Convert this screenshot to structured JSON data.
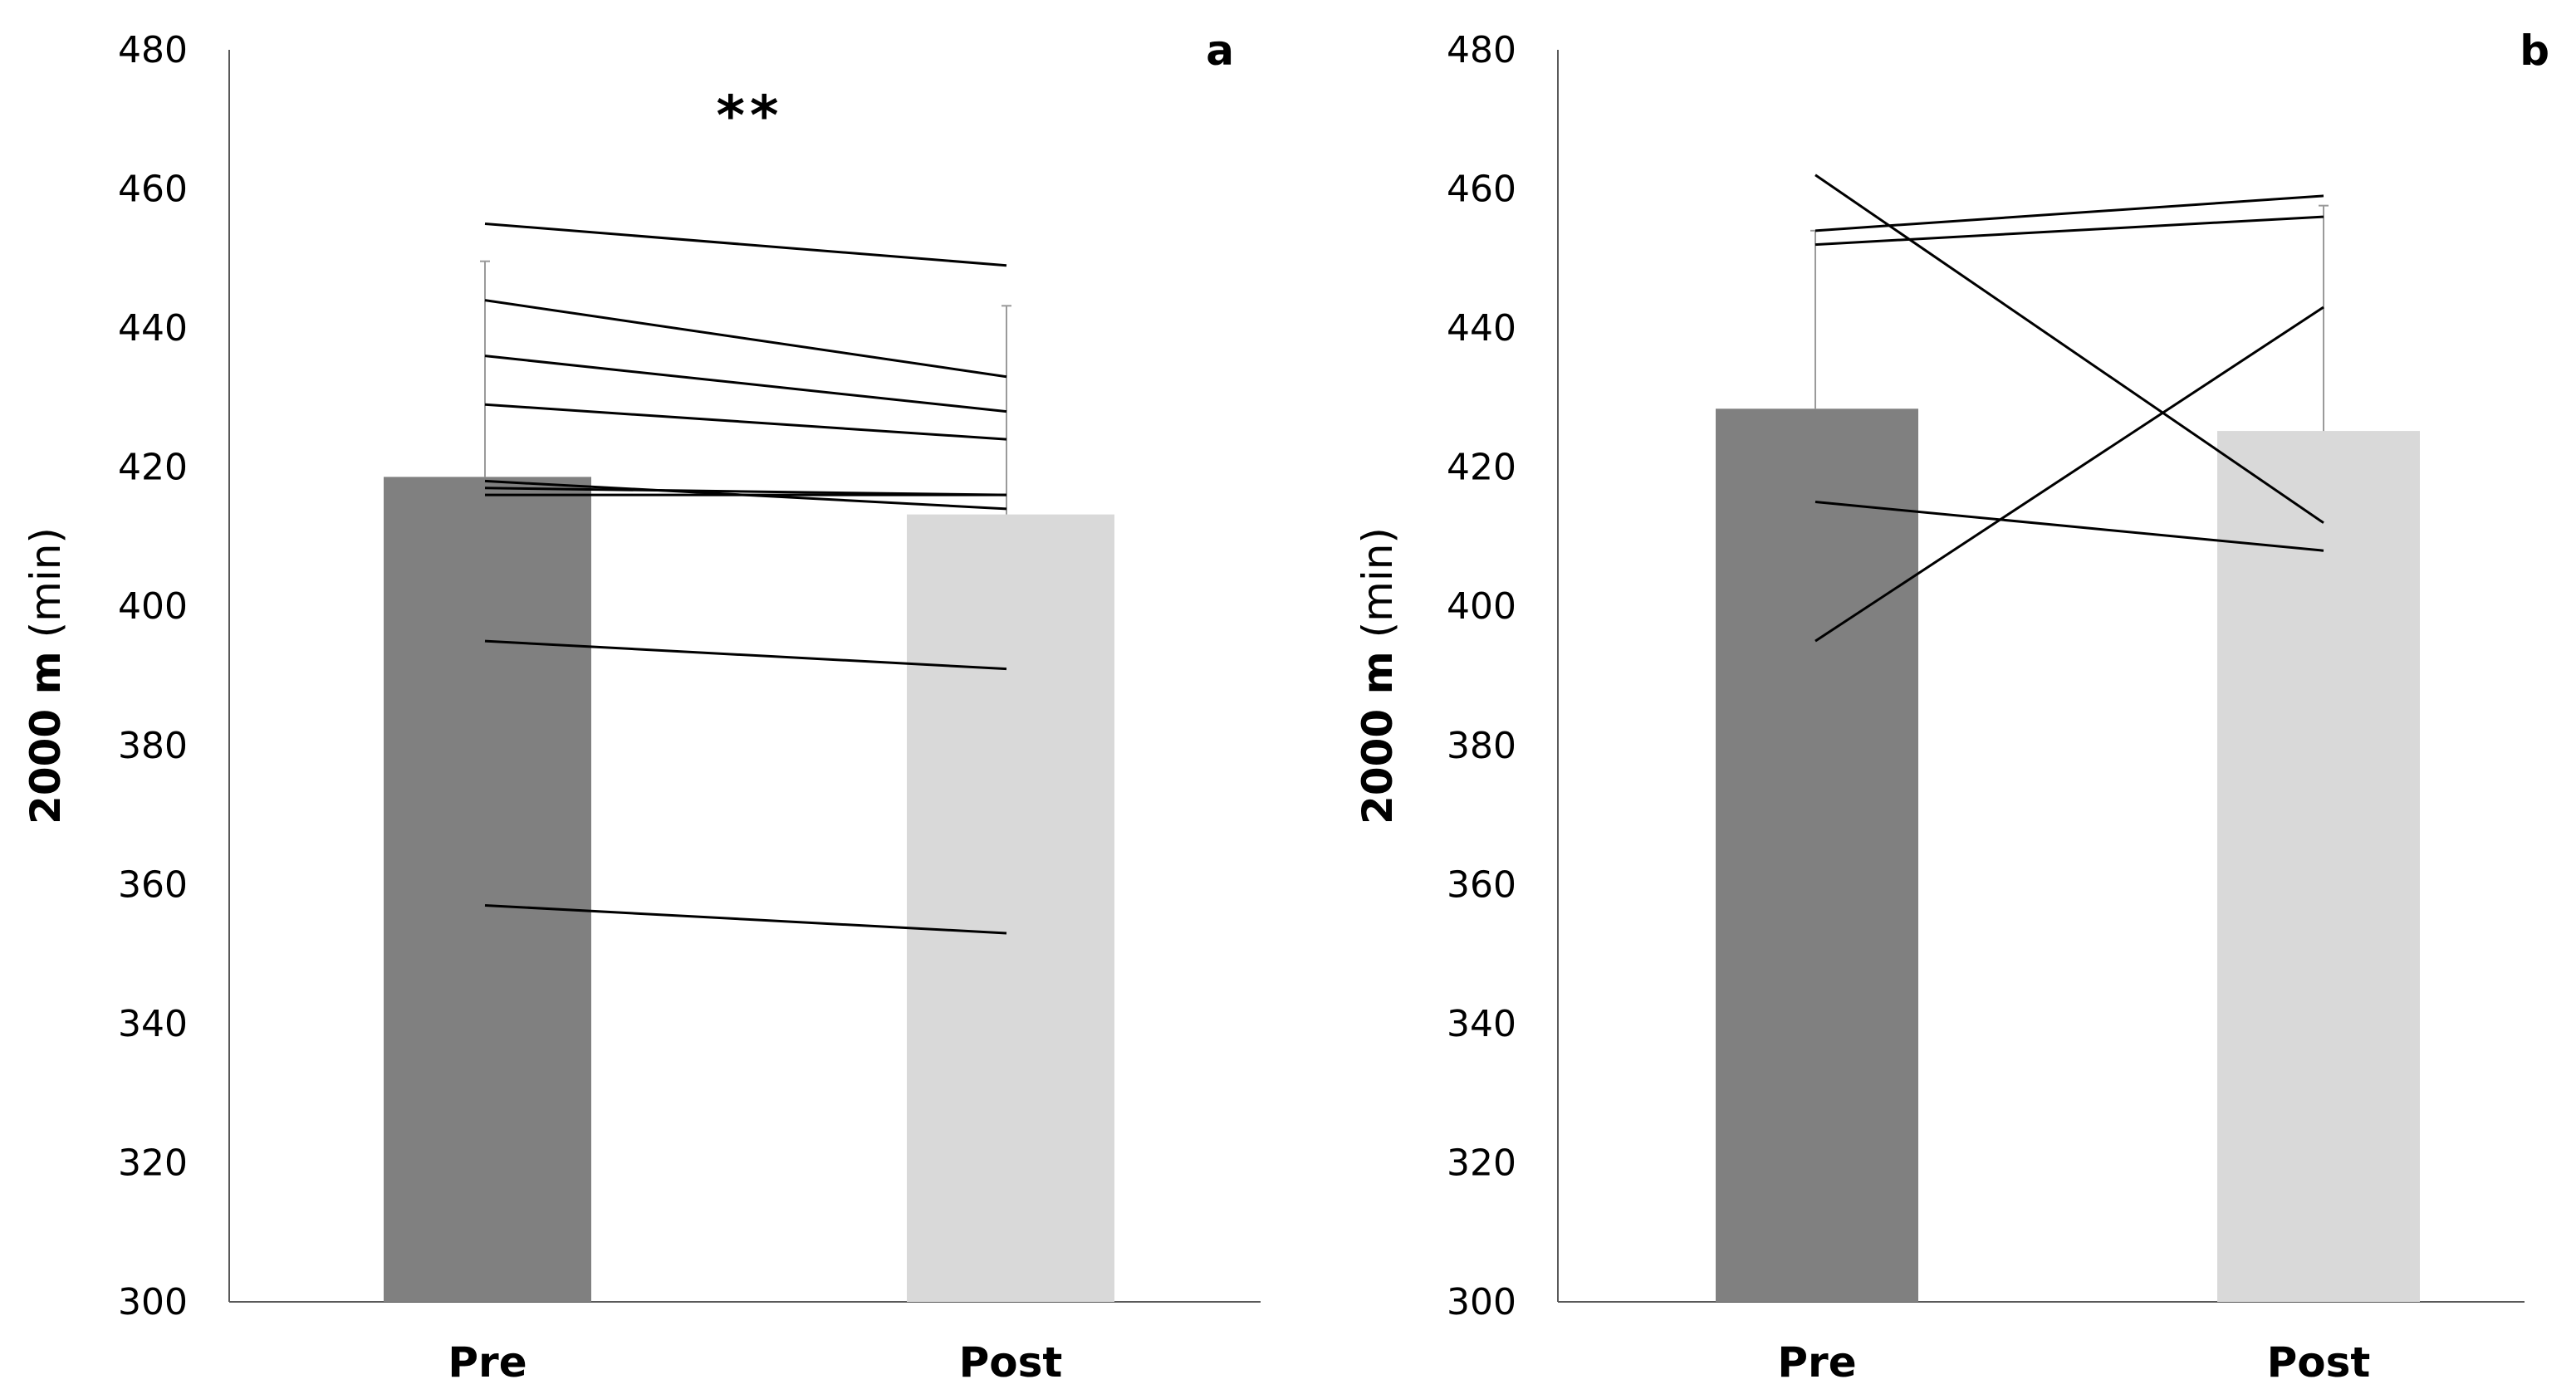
{
  "chart_data": [
    {
      "type": "bar",
      "panel_label": "a",
      "categories": [
        "Pre",
        "Post"
      ],
      "values": [
        418.6,
        413.2
      ],
      "bar_colors": [
        "#808080",
        "#d9d9d9"
      ],
      "error_upper": [
        449.6,
        443.2
      ],
      "ylabel_bold": "2000 m",
      "ylabel_unit": "(min)",
      "ylim": [
        300,
        480
      ],
      "yticks": [
        "300",
        "320",
        "340",
        "360",
        "380",
        "400",
        "420",
        "440",
        "460",
        "480"
      ],
      "significance": "**",
      "individual_lines": [
        {
          "pre": 455,
          "post": 449
        },
        {
          "pre": 444,
          "post": 433
        },
        {
          "pre": 436,
          "post": 428
        },
        {
          "pre": 429,
          "post": 424
        },
        {
          "pre": 418,
          "post": 414
        },
        {
          "pre": 417,
          "post": 416
        },
        {
          "pre": 416,
          "post": 416
        },
        {
          "pre": 395,
          "post": 391
        },
        {
          "pre": 357,
          "post": 353
        }
      ]
    },
    {
      "type": "bar",
      "panel_label": "b",
      "categories": [
        "Pre",
        "Post"
      ],
      "values": [
        428.4,
        425.2
      ],
      "bar_colors": [
        "#808080",
        "#d9d9d9"
      ],
      "error_upper": [
        454.0,
        457.6
      ],
      "ylabel_bold": "2000 m",
      "ylabel_unit": "(min)",
      "ylim": [
        300,
        480
      ],
      "yticks": [
        "300",
        "320",
        "340",
        "360",
        "380",
        "400",
        "420",
        "440",
        "460",
        "480"
      ],
      "significance": "",
      "individual_lines": [
        {
          "pre": 462,
          "post": 412
        },
        {
          "pre": 454,
          "post": 459
        },
        {
          "pre": 452,
          "post": 456
        },
        {
          "pre": 415,
          "post": 408
        },
        {
          "pre": 395,
          "post": 443
        }
      ]
    }
  ]
}
